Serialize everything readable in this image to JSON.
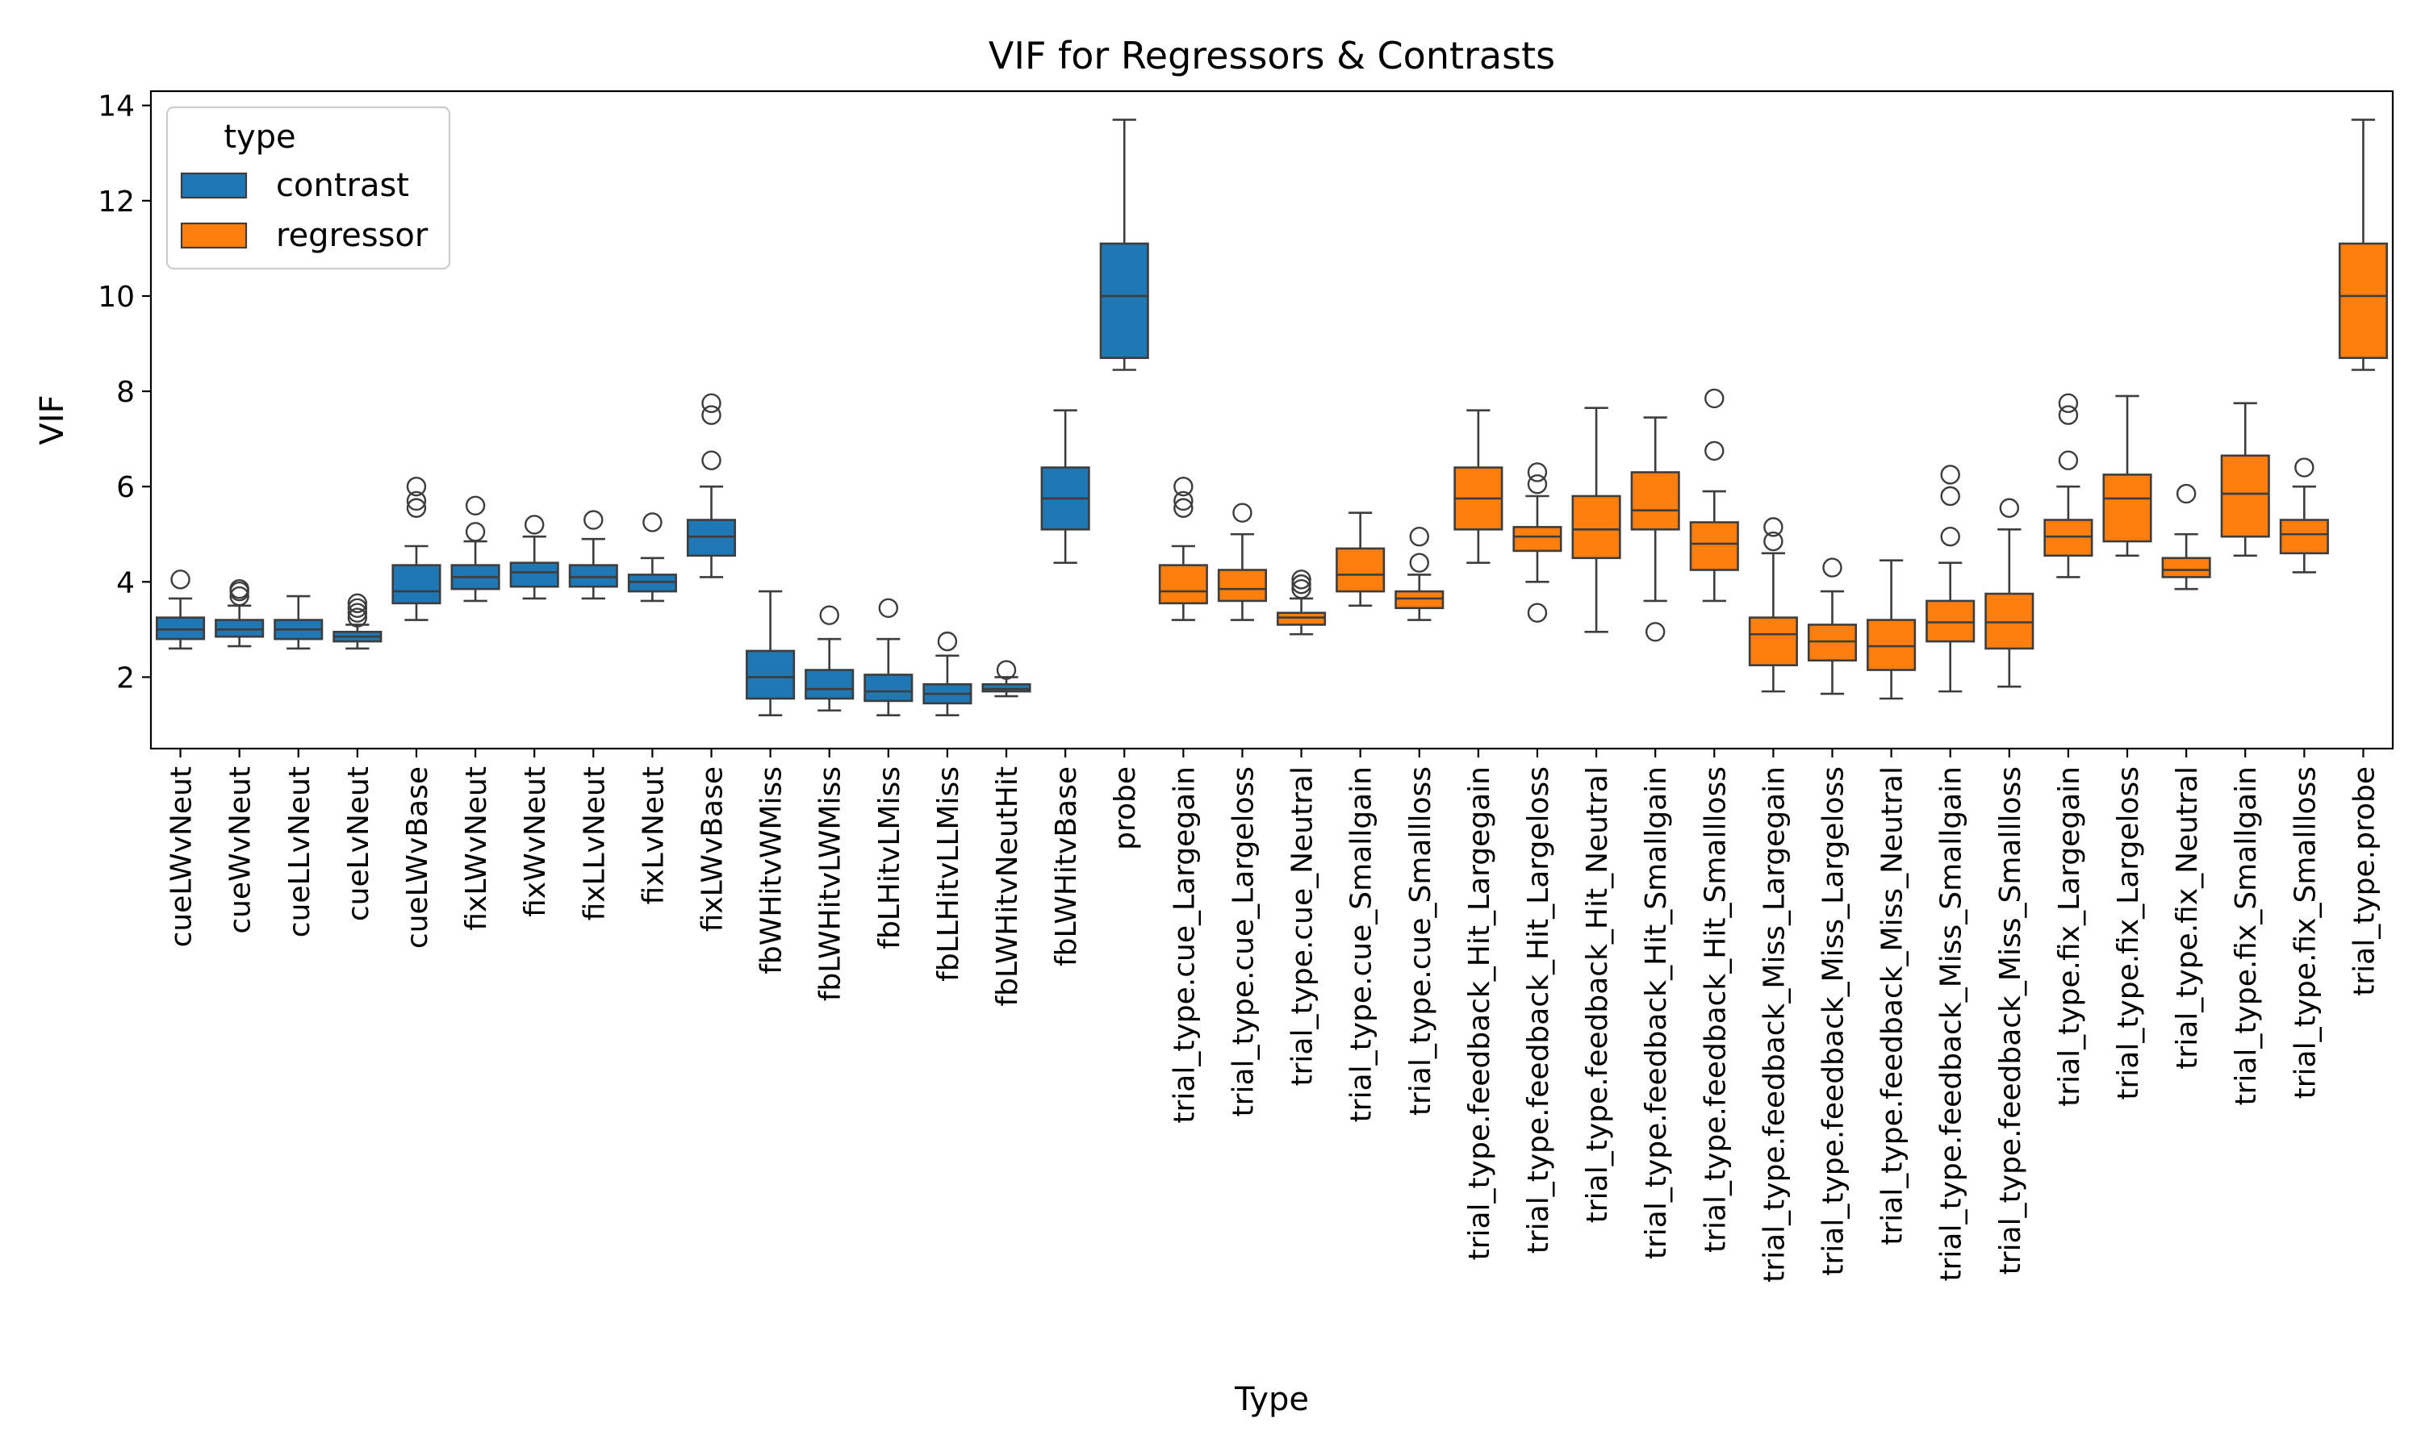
{
  "chart_data": {
    "type": "box",
    "title": "VIF for Regressors & Contrasts",
    "xlabel": "Type",
    "ylabel": "VIF",
    "ylim": [
      0.5,
      14.3
    ],
    "yticks": [
      2,
      4,
      6,
      8,
      10,
      12,
      14
    ],
    "grid": false,
    "legend": {
      "title": "type",
      "placement": "top-left",
      "entries": [
        {
          "name": "contrast",
          "color": "#1f77b4"
        },
        {
          "name": "regressor",
          "color": "#ff7f0e"
        }
      ]
    },
    "colors": {
      "contrast": "#1f77b4",
      "regressor": "#ff7f0e",
      "line": "#3d3d3d"
    },
    "boxes": [
      {
        "label": "cueLWvNeut",
        "type": "contrast",
        "whislo": 2.6,
        "q1": 2.8,
        "med": 3.0,
        "q3": 3.25,
        "whishi": 3.65,
        "fliers": [
          4.05
        ]
      },
      {
        "label": "cueWvNeut",
        "type": "contrast",
        "whislo": 2.65,
        "q1": 2.85,
        "med": 3.0,
        "q3": 3.2,
        "whishi": 3.5,
        "fliers": [
          3.7,
          3.8,
          3.85
        ]
      },
      {
        "label": "cueLLvNeut",
        "type": "contrast",
        "whislo": 2.6,
        "q1": 2.8,
        "med": 3.0,
        "q3": 3.2,
        "whishi": 3.7,
        "fliers": []
      },
      {
        "label": "cueLvNeut",
        "type": "contrast",
        "whislo": 2.6,
        "q1": 2.75,
        "med": 2.85,
        "q3": 2.95,
        "whishi": 3.1,
        "fliers": [
          3.25,
          3.35,
          3.45,
          3.55
        ]
      },
      {
        "label": "cueLWvBase",
        "type": "contrast",
        "whislo": 3.2,
        "q1": 3.55,
        "med": 3.8,
        "q3": 4.35,
        "whishi": 4.75,
        "fliers": [
          5.55,
          5.7,
          6.0
        ]
      },
      {
        "label": "fixLWvNeut",
        "type": "contrast",
        "whislo": 3.6,
        "q1": 3.85,
        "med": 4.1,
        "q3": 4.35,
        "whishi": 4.85,
        "fliers": [
          5.05,
          5.6
        ]
      },
      {
        "label": "fixWvNeut",
        "type": "contrast",
        "whislo": 3.65,
        "q1": 3.9,
        "med": 4.2,
        "q3": 4.4,
        "whishi": 4.95,
        "fliers": [
          5.2
        ]
      },
      {
        "label": "fixLLvNeut",
        "type": "contrast",
        "whislo": 3.65,
        "q1": 3.9,
        "med": 4.1,
        "q3": 4.35,
        "whishi": 4.9,
        "fliers": [
          5.3
        ]
      },
      {
        "label": "fixLvNeut",
        "type": "contrast",
        "whislo": 3.6,
        "q1": 3.8,
        "med": 4.0,
        "q3": 4.15,
        "whishi": 4.5,
        "fliers": [
          5.25
        ]
      },
      {
        "label": "fixLWvBase",
        "type": "contrast",
        "whislo": 4.1,
        "q1": 4.55,
        "med": 4.95,
        "q3": 5.3,
        "whishi": 6.0,
        "fliers": [
          6.55,
          7.5,
          7.75
        ]
      },
      {
        "label": "fbWHitvWMiss",
        "type": "contrast",
        "whislo": 1.2,
        "q1": 1.55,
        "med": 2.0,
        "q3": 2.55,
        "whishi": 3.8,
        "fliers": []
      },
      {
        "label": "fbLWHitvLWMiss",
        "type": "contrast",
        "whislo": 1.3,
        "q1": 1.55,
        "med": 1.75,
        "q3": 2.15,
        "whishi": 2.8,
        "fliers": [
          3.3
        ]
      },
      {
        "label": "fbLHitvLMiss",
        "type": "contrast",
        "whislo": 1.2,
        "q1": 1.5,
        "med": 1.7,
        "q3": 2.05,
        "whishi": 2.8,
        "fliers": [
          3.45
        ]
      },
      {
        "label": "fbLLHitvLLMiss",
        "type": "contrast",
        "whislo": 1.2,
        "q1": 1.45,
        "med": 1.65,
        "q3": 1.85,
        "whishi": 2.45,
        "fliers": [
          2.75
        ]
      },
      {
        "label": "fbLWHitvNeutHit",
        "type": "contrast",
        "whislo": 1.6,
        "q1": 1.7,
        "med": 1.75,
        "q3": 1.85,
        "whishi": 2.0,
        "fliers": [
          2.15
        ]
      },
      {
        "label": "fbLWHitvBase",
        "type": "contrast",
        "whislo": 4.4,
        "q1": 5.1,
        "med": 5.75,
        "q3": 6.4,
        "whishi": 7.6,
        "fliers": []
      },
      {
        "label": "probe",
        "type": "contrast",
        "whislo": 8.45,
        "q1": 8.7,
        "med": 10.0,
        "q3": 11.1,
        "whishi": 13.7,
        "fliers": []
      },
      {
        "label": "trial_type.cue_Largegain",
        "type": "regressor",
        "whislo": 3.2,
        "q1": 3.55,
        "med": 3.8,
        "q3": 4.35,
        "whishi": 4.75,
        "fliers": [
          5.55,
          5.7,
          6.0
        ]
      },
      {
        "label": "trial_type.cue_Largeloss",
        "type": "regressor",
        "whislo": 3.2,
        "q1": 3.6,
        "med": 3.85,
        "q3": 4.25,
        "whishi": 5.0,
        "fliers": [
          5.45
        ]
      },
      {
        "label": "trial_type.cue_Neutral",
        "type": "regressor",
        "whislo": 2.9,
        "q1": 3.1,
        "med": 3.25,
        "q3": 3.35,
        "whishi": 3.65,
        "fliers": [
          3.85,
          3.95,
          4.05
        ]
      },
      {
        "label": "trial_type.cue_Smallgain",
        "type": "regressor",
        "whislo": 3.5,
        "q1": 3.8,
        "med": 4.15,
        "q3": 4.7,
        "whishi": 5.45,
        "fliers": []
      },
      {
        "label": "trial_type.cue_Smallloss",
        "type": "regressor",
        "whislo": 3.2,
        "q1": 3.45,
        "med": 3.65,
        "q3": 3.8,
        "whishi": 4.15,
        "fliers": [
          4.4,
          4.95
        ]
      },
      {
        "label": "trial_type.feedback_Hit_Largegain",
        "type": "regressor",
        "whislo": 4.4,
        "q1": 5.1,
        "med": 5.75,
        "q3": 6.4,
        "whishi": 7.6,
        "fliers": []
      },
      {
        "label": "trial_type.feedback_Hit_Largeloss",
        "type": "regressor",
        "whislo": 4.0,
        "q1": 4.65,
        "med": 4.95,
        "q3": 5.15,
        "whishi": 5.8,
        "fliers": [
          3.35,
          6.05,
          6.3
        ]
      },
      {
        "label": "trial_type.feedback_Hit_Neutral",
        "type": "regressor",
        "whislo": 2.95,
        "q1": 4.5,
        "med": 5.1,
        "q3": 5.8,
        "whishi": 7.65,
        "fliers": []
      },
      {
        "label": "trial_type.feedback_Hit_Smallgain",
        "type": "regressor",
        "whislo": 3.6,
        "q1": 5.1,
        "med": 5.5,
        "q3": 6.3,
        "whishi": 7.45,
        "fliers": [
          2.95
        ]
      },
      {
        "label": "trial_type.feedback_Hit_Smallloss",
        "type": "regressor",
        "whislo": 3.6,
        "q1": 4.25,
        "med": 4.8,
        "q3": 5.25,
        "whishi": 5.9,
        "fliers": [
          6.75,
          7.85
        ]
      },
      {
        "label": "trial_type.feedback_Miss_Largegain",
        "type": "regressor",
        "whislo": 1.7,
        "q1": 2.25,
        "med": 2.9,
        "q3": 3.25,
        "whishi": 4.6,
        "fliers": [
          4.85,
          5.15
        ]
      },
      {
        "label": "trial_type.feedback_Miss_Largeloss",
        "type": "regressor",
        "whislo": 1.65,
        "q1": 2.35,
        "med": 2.75,
        "q3": 3.1,
        "whishi": 3.8,
        "fliers": [
          4.3
        ]
      },
      {
        "label": "trial_type.feedback_Miss_Neutral",
        "type": "regressor",
        "whislo": 1.55,
        "q1": 2.15,
        "med": 2.65,
        "q3": 3.2,
        "whishi": 4.45,
        "fliers": []
      },
      {
        "label": "trial_type.feedback_Miss_Smallgain",
        "type": "regressor",
        "whislo": 1.7,
        "q1": 2.75,
        "med": 3.15,
        "q3": 3.6,
        "whishi": 4.4,
        "fliers": [
          4.95,
          5.8,
          6.25
        ]
      },
      {
        "label": "trial_type.feedback_Miss_Smallloss",
        "type": "regressor",
        "whislo": 1.8,
        "q1": 2.6,
        "med": 3.15,
        "q3": 3.75,
        "whishi": 5.1,
        "fliers": [
          5.55
        ]
      },
      {
        "label": "trial_type.fix_Largegain",
        "type": "regressor",
        "whislo": 4.1,
        "q1": 4.55,
        "med": 4.95,
        "q3": 5.3,
        "whishi": 6.0,
        "fliers": [
          6.55,
          7.5,
          7.75
        ]
      },
      {
        "label": "trial_type.fix_Largeloss",
        "type": "regressor",
        "whislo": 4.55,
        "q1": 4.85,
        "med": 5.75,
        "q3": 6.25,
        "whishi": 7.9,
        "fliers": []
      },
      {
        "label": "trial_type.fix_Neutral",
        "type": "regressor",
        "whislo": 3.85,
        "q1": 4.1,
        "med": 4.25,
        "q3": 4.5,
        "whishi": 5.0,
        "fliers": [
          5.85
        ]
      },
      {
        "label": "trial_type.fix_Smallgain",
        "type": "regressor",
        "whislo": 4.55,
        "q1": 4.95,
        "med": 5.85,
        "q3": 6.65,
        "whishi": 7.75,
        "fliers": []
      },
      {
        "label": "trial_type.fix_Smallloss",
        "type": "regressor",
        "whislo": 4.2,
        "q1": 4.6,
        "med": 5.0,
        "q3": 5.3,
        "whishi": 6.0,
        "fliers": [
          6.4
        ]
      },
      {
        "label": "trial_type.probe",
        "type": "regressor",
        "whislo": 8.45,
        "q1": 8.7,
        "med": 10.0,
        "q3": 11.1,
        "whishi": 13.7,
        "fliers": []
      }
    ]
  }
}
